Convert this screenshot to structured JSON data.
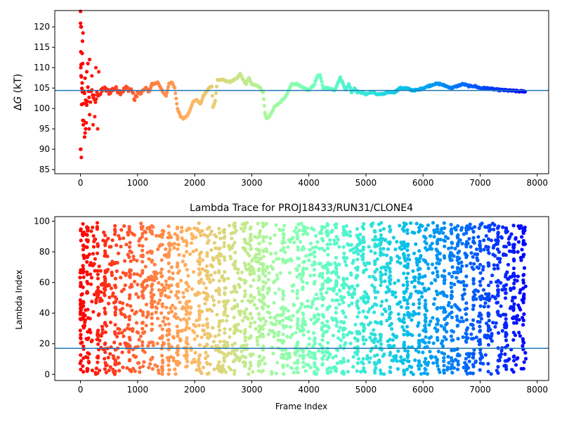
{
  "chart_data": [
    {
      "type": "scatter",
      "title": "",
      "xlabel": "",
      "ylabel": "ΔG (kT)",
      "ylabel_parts": {
        "delta": "Δ",
        "var": "G",
        "unit": " (kT)"
      },
      "xlim": [
        -450,
        8200
      ],
      "ylim": [
        84,
        124
      ],
      "x_ticks": [
        0,
        1000,
        2000,
        3000,
        4000,
        5000,
        6000,
        7000,
        8000
      ],
      "y_ticks": [
        85,
        90,
        95,
        100,
        105,
        110,
        115,
        120
      ],
      "reference_line": {
        "y": 104.4,
        "color": "#1f77b4"
      },
      "colormap": "rainbow (red at frame 0 → violet at final frame)",
      "trace_points": [
        [
          0,
          120
        ],
        [
          10,
          110
        ],
        [
          20,
          100
        ],
        [
          30,
          108
        ],
        [
          40,
          96
        ],
        [
          60,
          103
        ],
        [
          80,
          106
        ],
        [
          100,
          101
        ],
        [
          130,
          104
        ],
        [
          160,
          100
        ],
        [
          200,
          105
        ],
        [
          250,
          101
        ],
        [
          300,
          104
        ],
        [
          350,
          103.5
        ],
        [
          400,
          105
        ],
        [
          500,
          104
        ],
        [
          600,
          105
        ],
        [
          700,
          104
        ],
        [
          800,
          105
        ],
        [
          900,
          104.5
        ],
        [
          950,
          102
        ],
        [
          1000,
          104
        ],
        [
          1050,
          103.5
        ],
        [
          1100,
          104.5
        ],
        [
          1150,
          105
        ],
        [
          1200,
          104
        ],
        [
          1250,
          106
        ],
        [
          1300,
          106
        ],
        [
          1350,
          106.5
        ],
        [
          1400,
          105
        ],
        [
          1450,
          104
        ],
        [
          1500,
          103
        ],
        [
          1550,
          106
        ],
        [
          1600,
          106.5
        ],
        [
          1650,
          105
        ],
        [
          1700,
          100
        ],
        [
          1750,
          98
        ],
        [
          1800,
          97.5
        ],
        [
          1850,
          98
        ],
        [
          1900,
          99
        ],
        [
          1950,
          101
        ],
        [
          2000,
          102
        ],
        [
          2050,
          102
        ],
        [
          2100,
          101
        ],
        [
          2150,
          103
        ],
        [
          2200,
          104
        ],
        [
          2250,
          105
        ],
        [
          2300,
          105.5
        ],
        [
          2320,
          100.5
        ],
        [
          2340,
          101
        ],
        [
          2360,
          102
        ],
        [
          2400,
          107
        ],
        [
          2500,
          107
        ],
        [
          2600,
          106.5
        ],
        [
          2700,
          107
        ],
        [
          2750,
          107.5
        ],
        [
          2800,
          108.5
        ],
        [
          2850,
          107
        ],
        [
          2900,
          106
        ],
        [
          2950,
          107.5
        ],
        [
          3000,
          106
        ],
        [
          3100,
          105.5
        ],
        [
          3150,
          105
        ],
        [
          3200,
          104
        ],
        [
          3230,
          99
        ],
        [
          3260,
          97.5
        ],
        [
          3300,
          98
        ],
        [
          3350,
          99
        ],
        [
          3400,
          100.5
        ],
        [
          3500,
          101.5
        ],
        [
          3600,
          103
        ],
        [
          3700,
          106
        ],
        [
          3800,
          106
        ],
        [
          3900,
          105
        ],
        [
          4000,
          104.5
        ],
        [
          4100,
          106
        ],
        [
          4150,
          108
        ],
        [
          4200,
          108
        ],
        [
          4250,
          105
        ],
        [
          4350,
          105
        ],
        [
          4450,
          104.5
        ],
        [
          4500,
          106
        ],
        [
          4550,
          107.5
        ],
        [
          4600,
          106
        ],
        [
          4650,
          104.5
        ],
        [
          4700,
          106
        ],
        [
          4750,
          104
        ],
        [
          4800,
          105
        ],
        [
          4850,
          104
        ],
        [
          4900,
          104
        ],
        [
          5000,
          103.5
        ],
        [
          5100,
          104
        ],
        [
          5200,
          103.5
        ],
        [
          5300,
          103.5
        ],
        [
          5400,
          104
        ],
        [
          5500,
          104
        ],
        [
          5600,
          105
        ],
        [
          5700,
          105
        ],
        [
          5800,
          104.5
        ],
        [
          5900,
          104.5
        ],
        [
          6000,
          105
        ],
        [
          6100,
          105.5
        ],
        [
          6200,
          106
        ],
        [
          6300,
          106
        ],
        [
          6400,
          105.5
        ],
        [
          6500,
          105
        ],
        [
          6600,
          105.5
        ],
        [
          6700,
          106
        ],
        [
          6800,
          105.5
        ],
        [
          6900,
          105.5
        ],
        [
          7000,
          105
        ],
        [
          7100,
          105
        ],
        [
          7200,
          104.8
        ],
        [
          7300,
          104.6
        ],
        [
          7400,
          104.5
        ],
        [
          7500,
          104.4
        ],
        [
          7600,
          104.3
        ],
        [
          7700,
          104.2
        ],
        [
          7800,
          104.2
        ]
      ],
      "early_outliers": [
        [
          0,
          123.8
        ],
        [
          5,
          120
        ],
        [
          15,
          120
        ],
        [
          5,
          110
        ],
        [
          10,
          108
        ],
        [
          0,
          90
        ],
        [
          5,
          90
        ],
        [
          15,
          88
        ],
        [
          30,
          113.5
        ],
        [
          40,
          111
        ],
        [
          35,
          116.5
        ],
        [
          45,
          118.5
        ],
        [
          50,
          96
        ],
        [
          55,
          97
        ],
        [
          70,
          93
        ],
        [
          80,
          94
        ],
        [
          90,
          95
        ],
        [
          100,
          96.5
        ],
        [
          110,
          109
        ],
        [
          130,
          111
        ],
        [
          150,
          95
        ],
        [
          160,
          112
        ],
        [
          200,
          108
        ],
        [
          220,
          96
        ],
        [
          250,
          98
        ],
        [
          270,
          110
        ],
        [
          300,
          95
        ],
        [
          320,
          109
        ]
      ]
    },
    {
      "type": "scatter",
      "title": "Lambda Trace for PROJ18433/RUN31/CLONE4",
      "xlabel": "Frame Index",
      "ylabel": "Lambda Index",
      "xlim": [
        -450,
        8200
      ],
      "ylim": [
        -4,
        103
      ],
      "x_ticks": [
        0,
        1000,
        2000,
        3000,
        4000,
        5000,
        6000,
        7000,
        8000
      ],
      "y_ticks": [
        0,
        20,
        40,
        60,
        80,
        100
      ],
      "reference_line": {
        "y": 17,
        "color": "#1f77b4"
      },
      "colormap": "rainbow (red at frame 0 → violet at final frame)",
      "frame_count": 7800,
      "lambda_range": [
        0,
        99
      ],
      "density_note": "One point per frame; each frame's lambda index spread across the full 0–99 range, denser near 0–100 in vertical streaks.",
      "streak_frames": [
        0,
        50,
        120,
        300,
        430,
        610,
        860,
        1090,
        1250,
        1430,
        1550,
        1700,
        1860,
        2080,
        2220,
        2430,
        2520,
        2700,
        2880,
        2980,
        3130,
        3200,
        3550,
        3800,
        3900,
        4100,
        4240,
        4330,
        4480,
        4610,
        4850,
        4960,
        5160,
        5260,
        5420,
        5670,
        5730,
        5930,
        6040,
        6250,
        6370,
        6500,
        6610,
        6760,
        6880,
        7000,
        7150,
        7310,
        7450,
        7590,
        7760
      ]
    }
  ]
}
